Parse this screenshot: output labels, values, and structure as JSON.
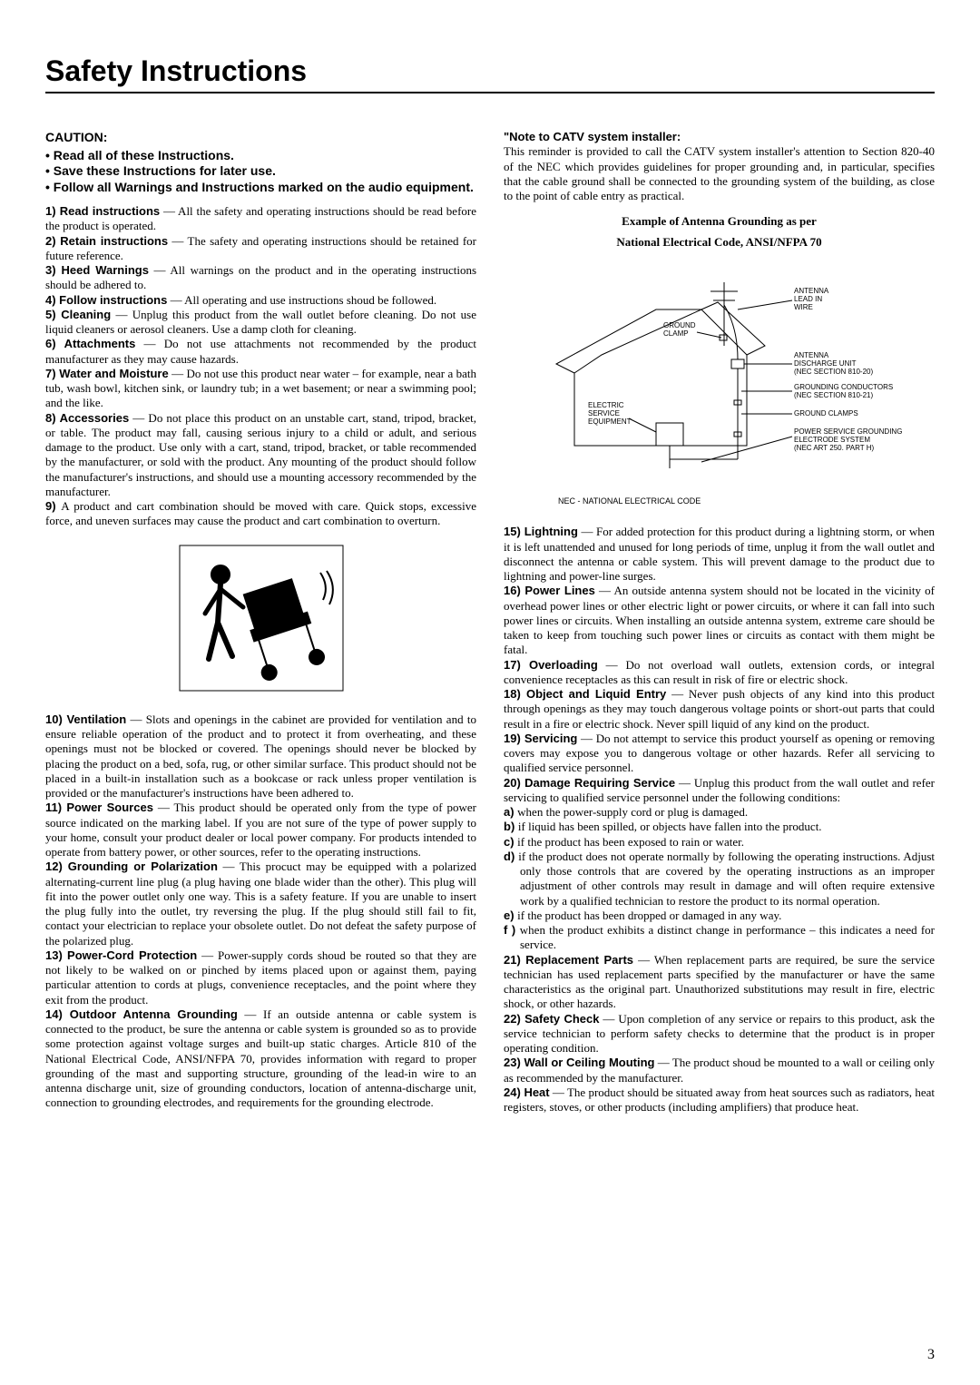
{
  "title": "Safety Instructions",
  "caution": {
    "head": "CAUTION:",
    "bullets": [
      "Read all of these Instructions.",
      "Save these Instructions for later use.",
      "Follow all Warnings and Instructions marked on the audio equipment."
    ]
  },
  "items_left_a": [
    {
      "num": "1)",
      "title": "Read instructions",
      "body": " — All the safety and operating instructions should be read before the product is operated."
    },
    {
      "num": "2)",
      "title": "Retain instructions",
      "body": " — The safety and operating instructions should be retained for future reference."
    },
    {
      "num": "3)",
      "title": "Heed Warnings",
      "body": " — All warnings on the product and in the operating instructions should be adhered to."
    },
    {
      "num": "4)",
      "title": "Follow instructions",
      "body": " — All operating and use instructions shoud be followed."
    },
    {
      "num": "5)",
      "title": "Cleaning",
      "body": " — Unplug this product from the wall outlet before cleaning. Do not use liquid cleaners or aerosol cleaners. Use a damp cloth for cleaning."
    },
    {
      "num": "6)",
      "title": "Attachments",
      "body": " — Do not use attachments not recommended by the product manufacturer as they may cause hazards."
    },
    {
      "num": "7)",
      "title": "Water and Moisture",
      "body": " — Do not use this product near water – for example, near a bath tub, wash bowl, kitchen sink, or laundry tub; in a wet basement; or near a swimming pool; and the like."
    },
    {
      "num": "8)",
      "title": "Accessories",
      "body": " — Do not place this product on an unstable cart, stand, tripod, bracket, or table. The product may fall, causing serious injury to a child or adult, and serious damage to the product. Use only with a cart, stand, tripod, bracket, or table recommended by the manufacturer, or sold with the product. Any mounting of the product should follow the manufacturer's instructions, and should use a mounting accessory recommended by the manufacturer."
    },
    {
      "num": "9)",
      "title": "",
      "body": "A product and cart combination should be moved with care. Quick stops, excessive force, and uneven surfaces may cause the product and cart combination to overturn."
    }
  ],
  "items_left_b": [
    {
      "num": "10)",
      "title": "Ventilation",
      "body": " — Slots and openings in the cabinet are provided for ventilation and to ensure reliable operation of the product  and to protect it from overheating, and these openings must not be blocked or  covered. The openings should never be blocked by placing the product on a bed, sofa, rug, or other similar surface. This product should not be placed in a built-in installation such as a bookcase or rack unless proper ventilation is provided or the manufacturer's instructions have been adhered to."
    },
    {
      "num": "11)",
      "title": "Power Sources",
      "body": " — This product should be operated only from the type of power source indicated on the marking label. If you are not sure of the type of power supply to your home, consult your product dealer or local power company. For products intended to operate from battery power, or other sources, refer to the operating instructions."
    },
    {
      "num": "12)",
      "title": "Grounding or Polarization",
      "body": " — This procuct may be equipped with a polarized alternating-current line plug (a plug having one blade wider than the other). This plug will fit into the power outlet only one way. This is a safety feature. If you are unable to insert the plug fully into the outlet, try reversing the plug. If the plug should still fail to fit, contact your electrician to replace your obsolete outlet. Do not defeat the safety purpose of the polarized plug."
    },
    {
      "num": "13)",
      "title": "Power-Cord Protection",
      "body": " — Power-supply cords shoud be routed so that they are not likely to be walked on or pinched by items placed upon or against them, paying particular attention to cords at plugs, convenience receptacles, and the point where they exit from the product."
    },
    {
      "num": "14)",
      "title": "Outdoor Antenna Grounding",
      "body": " — If an outside antenna or cable system is connected to the product, be  sure the antenna or cable system is grounded so as to provide some protection against voltage surges and built-up static charges. Article 810 of the National Electrical Code, ANSI/NFPA 70, provides information with regard to proper grounding of the mast and supporting structure, grounding of the lead-in wire to an antenna discharge unit, size of grounding conductors, location of antenna-discharge unit, connection to grounding electrodes, and requirements for the grounding electrode."
    }
  ],
  "note": {
    "head": "\"Note to CATV system installer:",
    "body": "This reminder is provided to call the CATV system installer's attention to Section 820-40 of the NEC which provides guidelines for proper grounding and, in particular, specifies that the cable ground shall be connected to the grounding system of the building, as close to the point of cable entry as practical."
  },
  "diagram": {
    "title_l1": "Example of Antenna Grounding as per",
    "title_l2": "National Electrical Code, ANSI/NFPA 70",
    "labels": {
      "antenna_lead": "ANTENNA\nLEAD IN\nWIRE",
      "ground_clamp_top": "GROUND\nCLAMP",
      "antenna_discharge": "ANTENNA\nDISCHARGE UNIT\n(NEC SECTION 810-20)",
      "electric_service": "ELECTRIC\nSERVICE\nEQUIPMENT",
      "grounding_conductors": "GROUNDING CONDUCTORS\n(NEC SECTION 810-21)",
      "ground_clamps": "GROUND CLAMPS",
      "power_service": "POWER SERVICE GROUNDING\nELECTRODE SYSTEM\n(NEC ART 250. PART H)",
      "nec_caption": "NEC - NATIONAL ELECTRICAL CODE"
    },
    "style": {
      "stroke": "#000000",
      "stroke_width": 1,
      "font_family": "Arial, Helvetica, sans-serif",
      "font_size": 8
    }
  },
  "items_right": [
    {
      "num": "15)",
      "title": "Lightning",
      "body": " — For added protection for this product during a lightning storm, or when it is left unattended and unused for long periods of time, unplug it from the wall outlet and disconnect the antenna or cable system. This will prevent damage to the product due to lightning and power-line surges."
    },
    {
      "num": "16)",
      "title": "Power Lines",
      "body": " — An outside antenna system should not be located in the vicinity of overhead power lines or other electric light or power circuits, or where it can fall into such power lines or circuits. When installing an outside antenna system, extreme care should be taken to keep from touching such power lines or circuits as contact with them might be fatal."
    },
    {
      "num": "17)",
      "title": "Overloading",
      "body": " — Do not overload wall outlets, extension cords, or integral convenience receptacles as this can result in risk of fire or electric shock."
    },
    {
      "num": "18)",
      "title": "Object and Liquid Entry",
      "body": " — Never push objects of any kind into this product through openings as they may touch dangerous voltage points or short-out parts that could result in a fire or electric shock. Never spill liquid of any kind on the product."
    },
    {
      "num": "19)",
      "title": "Servicing",
      "body": " — Do not attempt to service this product yourself as opening or removing covers may expose you to dangerous voltage or other hazards. Refer all servicing to qualified service personnel."
    },
    {
      "num": "20)",
      "title": "Damage Requiring Service",
      "body": " — Unplug this product from the wall outlet and refer servicing to qualified service personnel under the following conditions:"
    }
  ],
  "sub_items_20": [
    {
      "letter": "a)",
      "body": "when the power-supply cord or plug is damaged."
    },
    {
      "letter": "b)",
      "body": "if liquid has been spilled, or objects have fallen into the product."
    },
    {
      "letter": "c)",
      "body": "if the product has been exposed to rain or water."
    },
    {
      "letter": "d)",
      "body": "if the product does not operate normally by following the operating instructions. Adjust only those controls that are covered by the operating instructions as an improper adjustment of other controls may result in damage and will often require extensive work by a qualified technician to restore the product to its normal operation."
    },
    {
      "letter": "e)",
      "body": "if the product has been dropped or damaged in any way."
    },
    {
      "letter": "f )",
      "body": "when the product exhibits a distinct change in performance – this indicates a need for service."
    }
  ],
  "items_right_b": [
    {
      "num": "21)",
      "title": "Replacement Parts",
      "body": " — When replacement  parts are required, be sure the service technician has used replacement parts specified by the manufacturer or have the same characteristics as the original part. Unauthorized substitutions may result in fire, electric shock, or other hazards."
    },
    {
      "num": "22)",
      "title": "Safety Check",
      "body": " — Upon completion of any service or repairs to this product, ask the service technician to perform safety checks to determine that the product is in proper operating condition."
    },
    {
      "num": "23)",
      "title": "Wall or Ceiling Mouting",
      "body": " — The product shoud be mounted to a wall or ceiling only  as recommended by the manufacturer."
    },
    {
      "num": "24)",
      "title": "Heat",
      "body": " — The product should be situated away from heat sources such as radiators, heat registers, stoves, or other products (including amplifiers) that produce heat."
    }
  ],
  "page_number": "3"
}
